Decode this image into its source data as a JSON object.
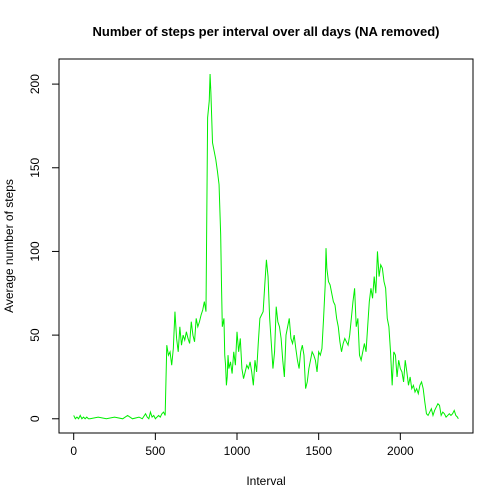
{
  "chart_data": {
    "type": "line",
    "title": "Number of steps per interval over all days (NA removed)",
    "xlabel": "Interval",
    "ylabel": "Average number of steps",
    "xlim": [
      -90,
      2445
    ],
    "ylim": [
      -8.5,
      215
    ],
    "x_ticks": [
      0,
      500,
      1000,
      1500,
      2000
    ],
    "y_ticks": [
      0,
      50,
      100,
      150,
      200
    ],
    "x_tick_labels": [
      "0",
      "500",
      "1000",
      "1500",
      "2000"
    ],
    "y_tick_labels": [
      "0",
      "50",
      "100",
      "150",
      "200"
    ],
    "grid": false,
    "series": [
      {
        "color": "#00ee00",
        "points": [
          [
            0,
            2
          ],
          [
            10,
            0
          ],
          [
            20,
            1
          ],
          [
            30,
            0
          ],
          [
            40,
            2
          ],
          [
            50,
            0
          ],
          [
            60,
            1
          ],
          [
            70,
            0
          ],
          [
            80,
            1
          ],
          [
            90,
            0
          ],
          [
            100,
            0
          ],
          [
            150,
            1
          ],
          [
            200,
            0
          ],
          [
            250,
            1
          ],
          [
            300,
            0
          ],
          [
            330,
            2
          ],
          [
            360,
            0
          ],
          [
            400,
            1
          ],
          [
            420,
            0
          ],
          [
            440,
            3
          ],
          [
            450,
            1
          ],
          [
            460,
            0
          ],
          [
            470,
            4
          ],
          [
            480,
            1
          ],
          [
            490,
            2
          ],
          [
            500,
            0
          ],
          [
            520,
            2
          ],
          [
            530,
            1
          ],
          [
            540,
            3
          ],
          [
            550,
            4
          ],
          [
            560,
            2
          ],
          [
            570,
            44
          ],
          [
            580,
            38
          ],
          [
            590,
            40
          ],
          [
            600,
            32
          ],
          [
            610,
            42
          ],
          [
            620,
            64
          ],
          [
            630,
            48
          ],
          [
            640,
            40
          ],
          [
            650,
            55
          ],
          [
            660,
            44
          ],
          [
            670,
            50
          ],
          [
            680,
            47
          ],
          [
            690,
            52
          ],
          [
            700,
            48
          ],
          [
            710,
            45
          ],
          [
            720,
            58
          ],
          [
            730,
            50
          ],
          [
            740,
            46
          ],
          [
            750,
            60
          ],
          [
            760,
            55
          ],
          [
            770,
            58
          ],
          [
            780,
            62
          ],
          [
            790,
            65
          ],
          [
            800,
            70
          ],
          [
            810,
            64
          ],
          [
            820,
            180
          ],
          [
            830,
            190
          ],
          [
            835,
            206
          ],
          [
            840,
            195
          ],
          [
            845,
            180
          ],
          [
            850,
            165
          ],
          [
            860,
            160
          ],
          [
            870,
            155
          ],
          [
            880,
            148
          ],
          [
            890,
            140
          ],
          [
            900,
            110
          ],
          [
            905,
            80
          ],
          [
            910,
            55
          ],
          [
            920,
            60
          ],
          [
            925,
            38
          ],
          [
            930,
            32
          ],
          [
            935,
            20
          ],
          [
            940,
            25
          ],
          [
            945,
            38
          ],
          [
            950,
            30
          ],
          [
            960,
            34
          ],
          [
            970,
            27
          ],
          [
            980,
            40
          ],
          [
            990,
            32
          ],
          [
            1000,
            52
          ],
          [
            1010,
            40
          ],
          [
            1020,
            48
          ],
          [
            1030,
            30
          ],
          [
            1040,
            24
          ],
          [
            1050,
            28
          ],
          [
            1060,
            32
          ],
          [
            1070,
            30
          ],
          [
            1080,
            34
          ],
          [
            1090,
            28
          ],
          [
            1100,
            20
          ],
          [
            1110,
            35
          ],
          [
            1120,
            28
          ],
          [
            1130,
            45
          ],
          [
            1140,
            60
          ],
          [
            1150,
            62
          ],
          [
            1160,
            64
          ],
          [
            1170,
            80
          ],
          [
            1180,
            95
          ],
          [
            1190,
            85
          ],
          [
            1200,
            60
          ],
          [
            1210,
            45
          ],
          [
            1220,
            30
          ],
          [
            1230,
            40
          ],
          [
            1240,
            67
          ],
          [
            1250,
            58
          ],
          [
            1260,
            55
          ],
          [
            1270,
            48
          ],
          [
            1280,
            35
          ],
          [
            1290,
            25
          ],
          [
            1300,
            50
          ],
          [
            1310,
            55
          ],
          [
            1320,
            60
          ],
          [
            1330,
            48
          ],
          [
            1340,
            45
          ],
          [
            1350,
            50
          ],
          [
            1360,
            42
          ],
          [
            1370,
            35
          ],
          [
            1380,
            30
          ],
          [
            1390,
            40
          ],
          [
            1400,
            44
          ],
          [
            1410,
            38
          ],
          [
            1420,
            18
          ],
          [
            1430,
            22
          ],
          [
            1440,
            30
          ],
          [
            1450,
            35
          ],
          [
            1460,
            40
          ],
          [
            1470,
            38
          ],
          [
            1480,
            35
          ],
          [
            1490,
            28
          ],
          [
            1500,
            40
          ],
          [
            1510,
            38
          ],
          [
            1520,
            42
          ],
          [
            1530,
            60
          ],
          [
            1540,
            80
          ],
          [
            1545,
            102
          ],
          [
            1550,
            90
          ],
          [
            1560,
            82
          ],
          [
            1570,
            80
          ],
          [
            1580,
            75
          ],
          [
            1590,
            70
          ],
          [
            1600,
            68
          ],
          [
            1610,
            60
          ],
          [
            1620,
            55
          ],
          [
            1630,
            46
          ],
          [
            1640,
            40
          ],
          [
            1650,
            45
          ],
          [
            1660,
            48
          ],
          [
            1670,
            46
          ],
          [
            1680,
            44
          ],
          [
            1690,
            50
          ],
          [
            1700,
            60
          ],
          [
            1710,
            70
          ],
          [
            1720,
            78
          ],
          [
            1730,
            55
          ],
          [
            1740,
            60
          ],
          [
            1750,
            38
          ],
          [
            1760,
            35
          ],
          [
            1770,
            40
          ],
          [
            1780,
            45
          ],
          [
            1790,
            40
          ],
          [
            1800,
            55
          ],
          [
            1810,
            70
          ],
          [
            1820,
            78
          ],
          [
            1830,
            72
          ],
          [
            1840,
            85
          ],
          [
            1850,
            75
          ],
          [
            1860,
            100
          ],
          [
            1870,
            85
          ],
          [
            1880,
            92
          ],
          [
            1890,
            90
          ],
          [
            1900,
            82
          ],
          [
            1910,
            78
          ],
          [
            1920,
            60
          ],
          [
            1930,
            55
          ],
          [
            1940,
            40
          ],
          [
            1950,
            20
          ],
          [
            1960,
            40
          ],
          [
            1970,
            38
          ],
          [
            1980,
            25
          ],
          [
            1990,
            35
          ],
          [
            2000,
            30
          ],
          [
            2010,
            28
          ],
          [
            2020,
            22
          ],
          [
            2030,
            35
          ],
          [
            2040,
            28
          ],
          [
            2050,
            20
          ],
          [
            2060,
            25
          ],
          [
            2070,
            18
          ],
          [
            2080,
            20
          ],
          [
            2090,
            16
          ],
          [
            2100,
            18
          ],
          [
            2110,
            15
          ],
          [
            2120,
            20
          ],
          [
            2130,
            22
          ],
          [
            2140,
            18
          ],
          [
            2150,
            10
          ],
          [
            2160,
            3
          ],
          [
            2170,
            2
          ],
          [
            2180,
            4
          ],
          [
            2190,
            6
          ],
          [
            2200,
            2
          ],
          [
            2210,
            5
          ],
          [
            2220,
            7
          ],
          [
            2230,
            9
          ],
          [
            2240,
            8
          ],
          [
            2250,
            2
          ],
          [
            2260,
            4
          ],
          [
            2270,
            3
          ],
          [
            2280,
            1
          ],
          [
            2290,
            2
          ],
          [
            2300,
            3
          ],
          [
            2310,
            2
          ],
          [
            2320,
            3
          ],
          [
            2330,
            5
          ],
          [
            2340,
            2
          ],
          [
            2350,
            1
          ],
          [
            2355,
            0
          ]
        ]
      }
    ]
  }
}
